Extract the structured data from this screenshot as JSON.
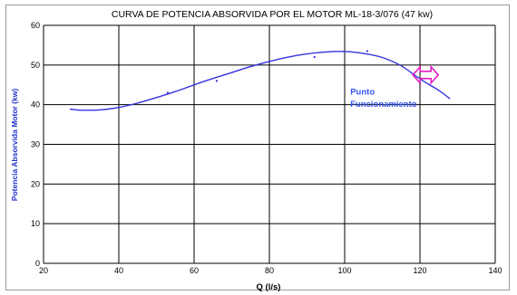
{
  "chart_data": {
    "type": "line",
    "title": "CURVA DE POTENCIA ABSORVIDA POR EL MOTOR ML-18-3/076 (47 kw)",
    "xlabel": "Q (l/s)",
    "ylabel": "Potencia Absorvida Motor (kw)",
    "xlim": [
      20,
      140
    ],
    "ylim": [
      0,
      60
    ],
    "x_ticks": [
      "20",
      "40",
      "60",
      "80",
      "100",
      "120",
      "140"
    ],
    "y_ticks": [
      "0",
      "10",
      "20",
      "30",
      "40",
      "50",
      "60"
    ],
    "grid": true,
    "legend": "none",
    "series": [
      {
        "name": "",
        "x": [
          27,
          30,
          35,
          40,
          45,
          50,
          55,
          60,
          65,
          70,
          75,
          80,
          85,
          90,
          95,
          100,
          105,
          110,
          115,
          120,
          125,
          128
        ],
        "y": [
          38.9,
          38.6,
          38.7,
          39.3,
          40.4,
          41.8,
          43.3,
          45.0,
          46.6,
          48.1,
          49.6,
          50.9,
          52.0,
          52.8,
          53.3,
          53.4,
          52.9,
          51.9,
          49.8,
          46.5,
          43.6,
          41.5
        ]
      }
    ],
    "markers": {
      "x": [
        53,
        66,
        92,
        106
      ],
      "y": [
        43.0,
        46.0,
        52.0,
        53.5
      ]
    },
    "operating_point": {
      "x": 121.5,
      "y": 47.5
    },
    "annotation": {
      "line1": "Punto",
      "line2": "Funcionamiento",
      "x": 101.5,
      "y1": 42.5,
      "y2": 39.5
    },
    "colors": {
      "curve": "#3333dd",
      "annotation_text": "#3355ee",
      "ylabel_text": "#2233cc",
      "operating_point_marker": "#e020c0",
      "grid": "#000000",
      "axis_text": "#000000"
    }
  }
}
